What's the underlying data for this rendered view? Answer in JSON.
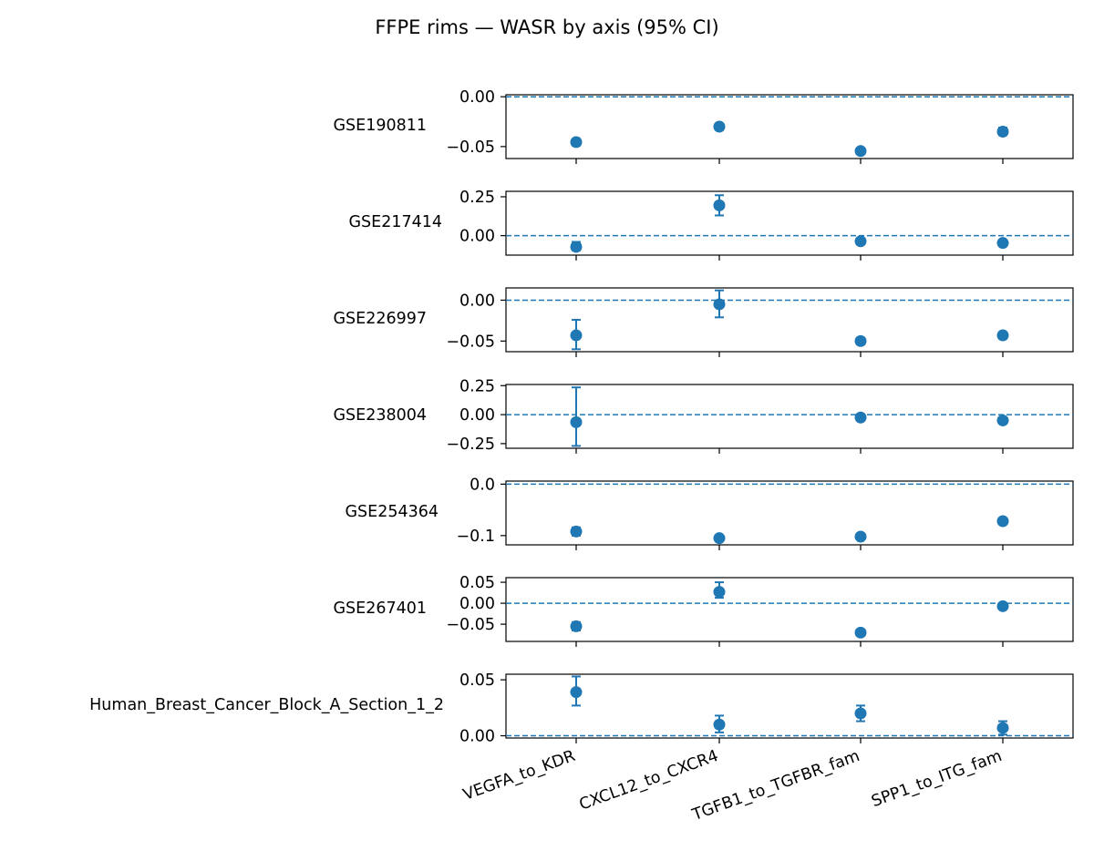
{
  "chart_data": {
    "type": "scatter",
    "title": "FFPE rims — WASR by axis (95% CI)",
    "categories": [
      "VEGFA_to_KDR",
      "CXCL12_to_CXCR4",
      "TGFB1_to_TGFBR_fam",
      "SPP1_to_ITG_fam"
    ],
    "reference_line": 0,
    "errorbars": "95% CI",
    "color": "#1f77b4",
    "panels": [
      {
        "name": "GSE190811",
        "ylim": [
          -0.062,
          0.002
        ],
        "yticks": [
          0.0,
          -0.05
        ],
        "ytick_labels": [
          "0.00",
          "−0.05"
        ],
        "points": [
          {
            "category": "VEGFA_to_KDR",
            "y": -0.0455,
            "lo": -0.049,
            "hi": -0.0425
          },
          {
            "category": "CXCL12_to_CXCR4",
            "y": -0.03,
            "lo": -0.033,
            "hi": -0.027
          },
          {
            "category": "TGFB1_to_TGFBR_fam",
            "y": -0.0545,
            "lo": -0.057,
            "hi": -0.052
          },
          {
            "category": "SPP1_to_ITG_fam",
            "y": -0.035,
            "lo": -0.0385,
            "hi": -0.031
          }
        ]
      },
      {
        "name": "GSE217414",
        "ylim": [
          -0.125,
          0.285
        ],
        "yticks": [
          0.25,
          0.0
        ],
        "ytick_labels": [
          "0.25",
          "0.00"
        ],
        "points": [
          {
            "category": "VEGFA_to_KDR",
            "y": -0.072,
            "lo": -0.095,
            "hi": -0.04
          },
          {
            "category": "CXCL12_to_CXCR4",
            "y": 0.195,
            "lo": 0.13,
            "hi": 0.26
          },
          {
            "category": "TGFB1_to_TGFBR_fam",
            "y": -0.036,
            "lo": -0.045,
            "hi": -0.027
          },
          {
            "category": "SPP1_to_ITG_fam",
            "y": -0.047,
            "lo": -0.056,
            "hi": -0.038
          }
        ]
      },
      {
        "name": "GSE226997",
        "ylim": [
          -0.063,
          0.015
        ],
        "yticks": [
          0.0,
          -0.05
        ],
        "ytick_labels": [
          "0.00",
          "−0.05"
        ],
        "points": [
          {
            "category": "VEGFA_to_KDR",
            "y": -0.043,
            "lo": -0.06,
            "hi": -0.024
          },
          {
            "category": "CXCL12_to_CXCR4",
            "y": -0.005,
            "lo": -0.021,
            "hi": 0.012
          },
          {
            "category": "TGFB1_to_TGFBR_fam",
            "y": -0.05,
            "lo": -0.054,
            "hi": -0.046
          },
          {
            "category": "SPP1_to_ITG_fam",
            "y": -0.043,
            "lo": -0.047,
            "hi": -0.039
          }
        ]
      },
      {
        "name": "GSE238004",
        "ylim": [
          -0.29,
          0.26
        ],
        "yticks": [
          0.25,
          0.0,
          -0.25
        ],
        "ytick_labels": [
          "0.25",
          "0.00",
          "−0.25"
        ],
        "points": [
          {
            "category": "VEGFA_to_KDR",
            "y": -0.065,
            "lo": -0.27,
            "hi": 0.235
          },
          {
            "category": "TGFB1_to_TGFBR_fam",
            "y": -0.025,
            "lo": -0.034,
            "hi": -0.016
          },
          {
            "category": "SPP1_to_ITG_fam",
            "y": -0.05,
            "lo": -0.059,
            "hi": -0.041
          }
        ]
      },
      {
        "name": "GSE254364",
        "ylim": [
          -0.118,
          0.006
        ],
        "yticks": [
          0.0,
          -0.1
        ],
        "ytick_labels": [
          "0.0",
          "−0.1"
        ],
        "points": [
          {
            "category": "VEGFA_to_KDR",
            "y": -0.092,
            "lo": -0.1,
            "hi": -0.084
          },
          {
            "category": "CXCL12_to_CXCR4",
            "y": -0.105,
            "lo": -0.109,
            "hi": -0.101
          },
          {
            "category": "TGFB1_to_TGFBR_fam",
            "y": -0.102,
            "lo": -0.105,
            "hi": -0.099
          },
          {
            "category": "SPP1_to_ITG_fam",
            "y": -0.072,
            "lo": -0.075,
            "hi": -0.069
          }
        ]
      },
      {
        "name": "GSE267401",
        "ylim": [
          -0.091,
          0.061
        ],
        "yticks": [
          0.05,
          0.0,
          -0.05
        ],
        "ytick_labels": [
          "0.05",
          "0.00",
          "−0.05"
        ],
        "points": [
          {
            "category": "VEGFA_to_KDR",
            "y": -0.055,
            "lo": -0.065,
            "hi": -0.045
          },
          {
            "category": "CXCL12_to_CXCR4",
            "y": 0.027,
            "lo": 0.013,
            "hi": 0.05
          },
          {
            "category": "TGFB1_to_TGFBR_fam",
            "y": -0.07,
            "lo": -0.077,
            "hi": -0.063
          },
          {
            "category": "SPP1_to_ITG_fam",
            "y": -0.007,
            "lo": -0.01,
            "hi": -0.004
          }
        ]
      },
      {
        "name": "Human_Breast_Cancer_Block_A_Section_1_2",
        "ylim": [
          -0.002,
          0.055
        ],
        "yticks": [
          0.05,
          0.0
        ],
        "ytick_labels": [
          "0.05",
          "0.00"
        ],
        "points": [
          {
            "category": "VEGFA_to_KDR",
            "y": 0.039,
            "lo": 0.027,
            "hi": 0.053
          },
          {
            "category": "CXCL12_to_CXCR4",
            "y": 0.01,
            "lo": 0.003,
            "hi": 0.018
          },
          {
            "category": "TGFB1_to_TGFBR_fam",
            "y": 0.02,
            "lo": 0.013,
            "hi": 0.027
          },
          {
            "category": "SPP1_to_ITG_fam",
            "y": 0.007,
            "lo": 0.001,
            "hi": 0.013
          }
        ]
      }
    ]
  }
}
